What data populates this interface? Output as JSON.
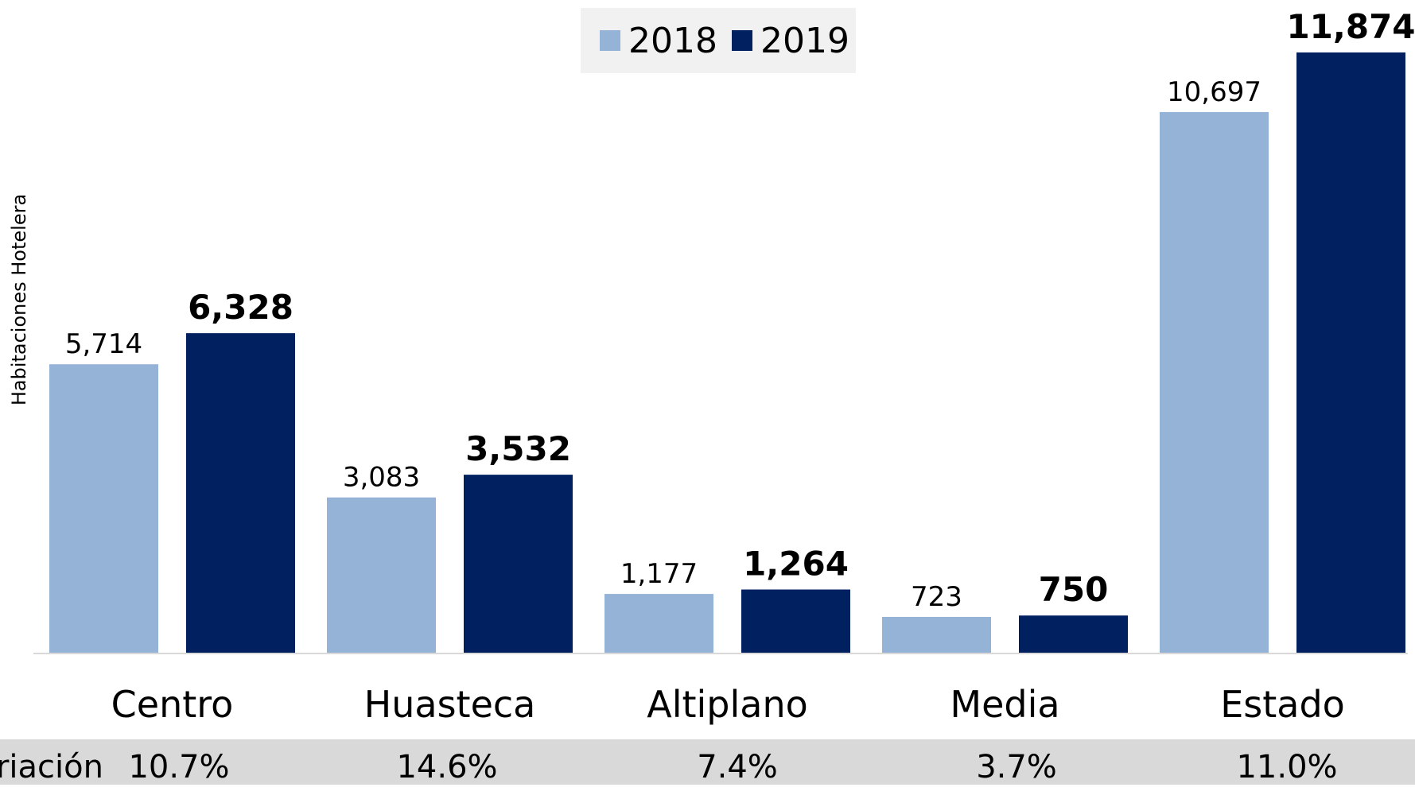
{
  "chart_data": {
    "type": "bar",
    "categories": [
      "Centro",
      "Huasteca",
      "Altiplano",
      "Media",
      "Estado"
    ],
    "series": [
      {
        "name": "2018",
        "values": [
          5714,
          3083,
          1177,
          723,
          10697
        ],
        "labels": [
          "5,714",
          "3,083",
          "1,177",
          "723",
          "10,697"
        ],
        "color": "#95b3d7"
      },
      {
        "name": "2019",
        "values": [
          6328,
          3532,
          1264,
          750,
          11874
        ],
        "labels": [
          "6,328",
          "3,532",
          "1,264",
          "750",
          "11,874"
        ],
        "color": "#002060"
      }
    ],
    "ylabel": "Habitaciones Hotelera",
    "ylim": [
      0,
      11874
    ],
    "legend_position": "top-center",
    "grid": false,
    "variation": {
      "label": "Variación:",
      "values": [
        "10.7%",
        "14.6%",
        "7.4%",
        "3.7%",
        "11.0%"
      ]
    }
  }
}
